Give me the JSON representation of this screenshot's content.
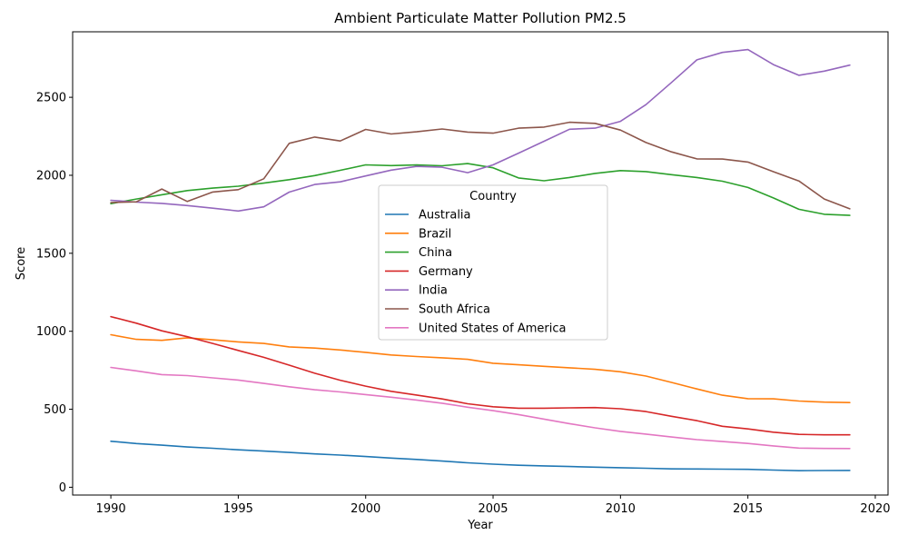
{
  "chart_data": {
    "type": "line",
    "title": "Ambient Particulate Matter Pollution PM2.5",
    "xlabel": "Year",
    "ylabel": "Score",
    "xlim": [
      1988.5,
      2020.5
    ],
    "ylim": [
      -50,
      2920
    ],
    "xticks": [
      1990,
      1995,
      2000,
      2005,
      2010,
      2015,
      2020
    ],
    "yticks": [
      0,
      500,
      1000,
      1500,
      2000,
      2500
    ],
    "grid": false,
    "legend": {
      "title": "Country",
      "placement": "center"
    },
    "x": [
      1990,
      1991,
      1992,
      1993,
      1994,
      1995,
      1996,
      1997,
      1998,
      1999,
      2000,
      2001,
      2002,
      2003,
      2004,
      2005,
      2006,
      2007,
      2008,
      2009,
      2010,
      2011,
      2012,
      2013,
      2014,
      2015,
      2016,
      2017,
      2018,
      2019
    ],
    "series": [
      {
        "name": "Australia",
        "color": "#1f77b4",
        "values": [
          295,
          280,
          270,
          258,
          250,
          240,
          232,
          223,
          214,
          206,
          197,
          187,
          178,
          168,
          157,
          148,
          141,
          137,
          133,
          129,
          125,
          122,
          118,
          117,
          116,
          115,
          110,
          106,
          107,
          108
        ]
      },
      {
        "name": "Brazil",
        "color": "#ff7f0e",
        "values": [
          978,
          948,
          942,
          958,
          945,
          932,
          922,
          900,
          892,
          880,
          865,
          848,
          838,
          830,
          820,
          795,
          785,
          775,
          766,
          756,
          740,
          713,
          672,
          630,
          590,
          568,
          567,
          553,
          546,
          543
        ]
      },
      {
        "name": "China",
        "color": "#2ca02c",
        "values": [
          1818,
          1848,
          1875,
          1902,
          1918,
          1930,
          1950,
          1972,
          1998,
          2032,
          2067,
          2062,
          2066,
          2061,
          2075,
          2048,
          1983,
          1965,
          1986,
          2012,
          2030,
          2024,
          2004,
          1986,
          1962,
          1922,
          1855,
          1782,
          1750,
          1743
        ]
      },
      {
        "name": "Germany",
        "color": "#d62728",
        "values": [
          1094,
          1052,
          1003,
          965,
          922,
          877,
          833,
          783,
          731,
          686,
          648,
          615,
          591,
          566,
          535,
          516,
          507,
          507,
          509,
          511,
          503,
          485,
          455,
          427,
          391,
          374,
          353,
          339,
          336,
          336
        ]
      },
      {
        "name": "India",
        "color": "#9467bd",
        "values": [
          1840,
          1828,
          1820,
          1806,
          1789,
          1771,
          1798,
          1892,
          1941,
          1958,
          1996,
          2033,
          2057,
          2052,
          2017,
          2067,
          2142,
          2218,
          2295,
          2302,
          2346,
          2453,
          2595,
          2740,
          2788,
          2806,
          2710,
          2641,
          2668,
          2706
        ]
      },
      {
        "name": "South Africa",
        "color": "#8c564b",
        "values": [
          1825,
          1830,
          1912,
          1832,
          1893,
          1908,
          1978,
          2205,
          2245,
          2220,
          2294,
          2265,
          2279,
          2297,
          2277,
          2270,
          2302,
          2309,
          2340,
          2333,
          2290,
          2210,
          2150,
          2105,
          2104,
          2085,
          2023,
          1964,
          1848,
          1785
        ]
      },
      {
        "name": "United States of America",
        "color": "#e377c2",
        "values": [
          768,
          746,
          722,
          716,
          701,
          687,
          666,
          644,
          625,
          611,
          594,
          577,
          559,
          539,
          513,
          491,
          466,
          437,
          408,
          381,
          358,
          341,
          322,
          305,
          293,
          281,
          265,
          251,
          249,
          248
        ]
      }
    ]
  }
}
